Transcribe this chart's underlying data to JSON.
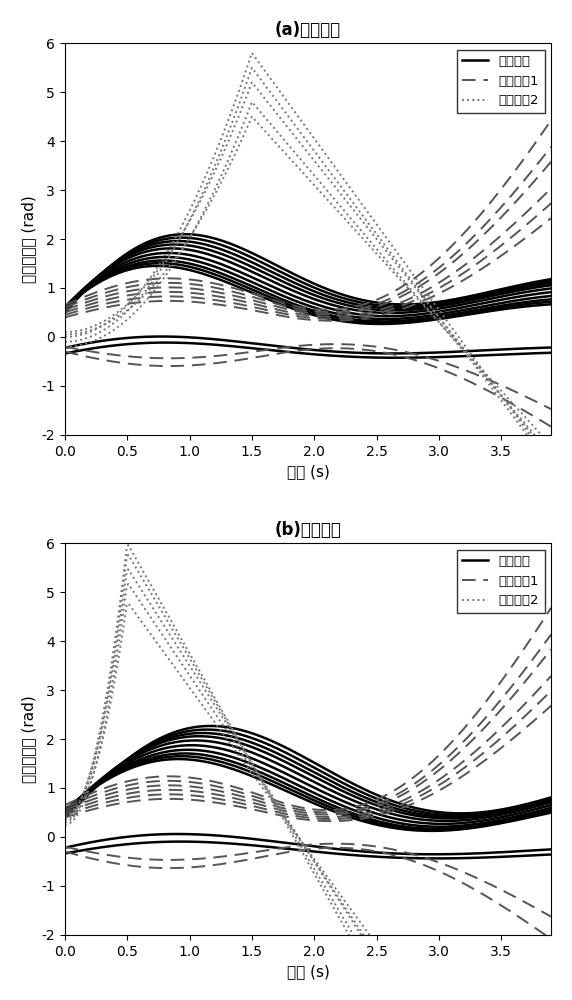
{
  "title_a": "(a)相同故障",
  "title_b": "(b)不同故障",
  "ylabel": "相对转子角 (rad)",
  "xlabel": "时间 (s)",
  "legend_stable": "稳定样本",
  "legend_unstable1": "失稳样本1",
  "legend_unstable2": "失稳样本2",
  "ylim": [
    -2,
    6
  ],
  "xlim": [
    0,
    3.9
  ],
  "yticks": [
    -2,
    -1,
    0,
    1,
    2,
    3,
    4,
    5,
    6
  ],
  "xticks": [
    0,
    0.5,
    1,
    1.5,
    2,
    2.5,
    3,
    3.5
  ],
  "stable_color": "#000000",
  "unstable1_color": "#555555",
  "unstable2_color": "#777777",
  "figsize": [
    5.72,
    10.0
  ],
  "dpi": 100
}
